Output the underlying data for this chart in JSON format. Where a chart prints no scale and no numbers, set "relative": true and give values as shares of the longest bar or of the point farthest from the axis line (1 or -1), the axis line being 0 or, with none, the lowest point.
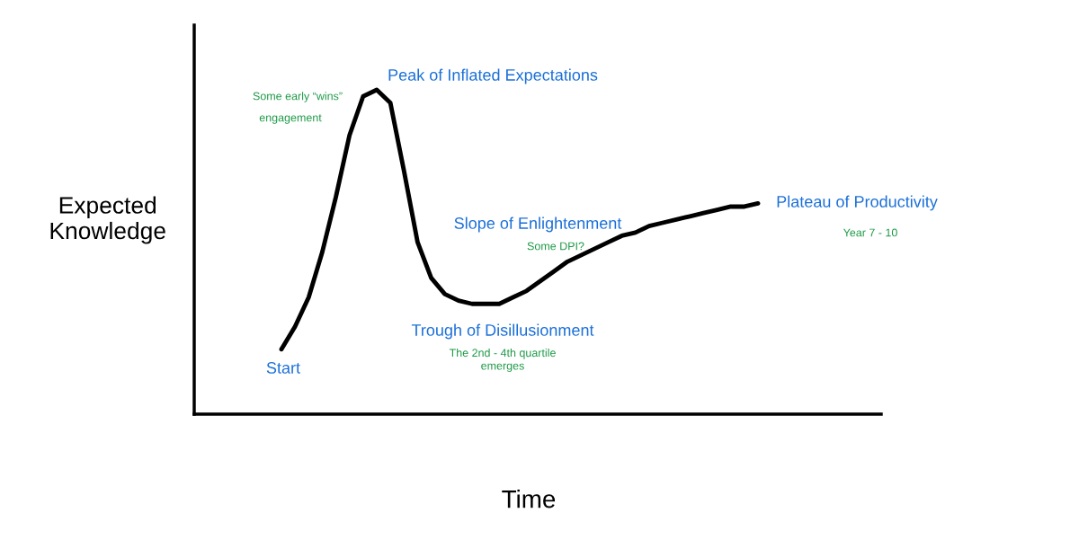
{
  "chart_data": {
    "type": "line",
    "xlabel": "Time",
    "ylabel": "Expected\nKnowledge",
    "relative": true,
    "grid": false,
    "legend": false,
    "line_style": "solid",
    "categories": [
      null,
      null,
      null,
      null,
      null,
      null,
      null,
      null,
      null,
      null,
      null,
      null,
      null,
      null,
      null,
      null,
      null,
      null,
      null,
      null,
      null,
      null,
      null,
      null,
      null,
      null,
      null,
      null,
      null,
      null,
      null,
      null,
      null,
      null,
      null,
      null
    ],
    "series": [
      {
        "color": "#000000",
        "values": [
          0.2,
          0.27,
          0.36,
          0.5,
          0.67,
          0.86,
          0.98,
          1,
          0.96,
          0.75,
          0.53,
          0.42,
          0.37,
          0.35,
          0.34,
          0.34,
          0.34,
          0.36,
          0.38,
          0.41,
          0.44,
          0.47,
          0.49,
          0.51,
          0.53,
          0.55,
          0.56,
          0.58,
          0.59,
          0.6,
          0.61,
          0.62,
          0.63,
          0.64,
          0.64,
          0.65
        ]
      }
    ],
    "annotations": [
      "Peak of Inflated Expectations",
      "Some early “wins”",
      "engagement",
      "Slope of Enlightenment",
      "Some DPI?",
      "Plateau of Productivity",
      "Year 7 - 10",
      "Trough of Disillusionment",
      "The 2nd - 4th quartile\nemerges",
      "Start"
    ]
  }
}
